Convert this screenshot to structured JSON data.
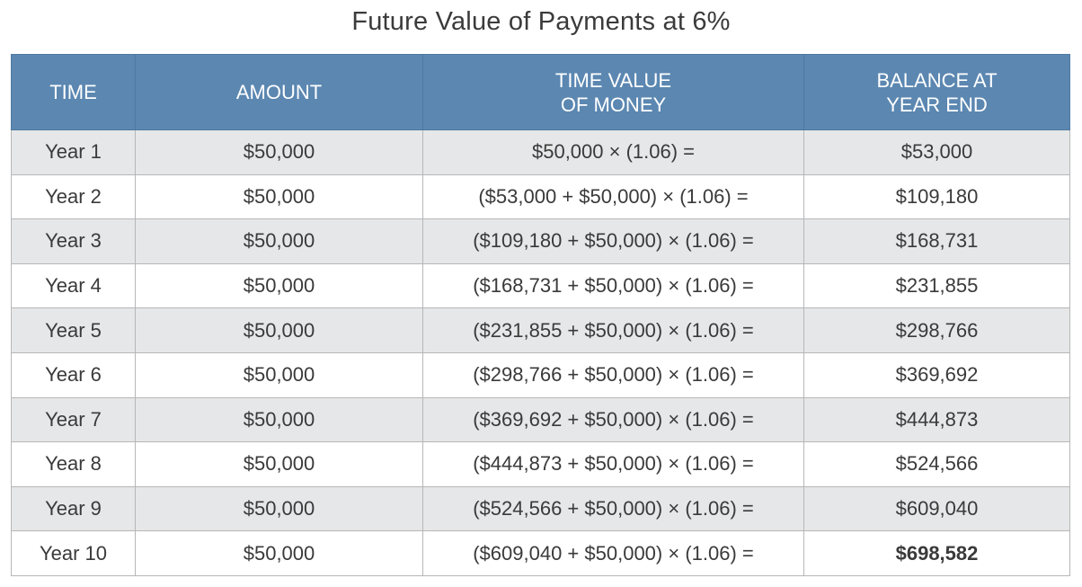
{
  "title": "Future Value of Payments at 6%",
  "chart_data": {
    "type": "table",
    "title": "Future Value of Payments at 6%",
    "columns": [
      [
        "TIME"
      ],
      [
        "AMOUNT"
      ],
      [
        "TIME VALUE",
        "OF MONEY"
      ],
      [
        "BALANCE AT",
        "YEAR END"
      ]
    ],
    "rows": [
      {
        "time": "Year 1",
        "amount": "$50,000",
        "calc": "$50,000 × (1.06) =",
        "balance": "$53,000"
      },
      {
        "time": "Year 2",
        "amount": "$50,000",
        "calc": "($53,000 + $50,000) × (1.06) =",
        "balance": "$109,180"
      },
      {
        "time": "Year 3",
        "amount": "$50,000",
        "calc": "($109,180 + $50,000) × (1.06) =",
        "balance": "$168,731"
      },
      {
        "time": "Year 4",
        "amount": "$50,000",
        "calc": "($168,731 + $50,000) × (1.06) =",
        "balance": "$231,855"
      },
      {
        "time": "Year 5",
        "amount": "$50,000",
        "calc": "($231,855 + $50,000) × (1.06) =",
        "balance": "$298,766"
      },
      {
        "time": "Year 6",
        "amount": "$50,000",
        "calc": "($298,766 + $50,000) × (1.06) =",
        "balance": "$369,692"
      },
      {
        "time": "Year 7",
        "amount": "$50,000",
        "calc": "($369,692 + $50,000) × (1.06) =",
        "balance": "$444,873"
      },
      {
        "time": "Year 8",
        "amount": "$50,000",
        "calc": "($444,873 + $50,000) × (1.06) =",
        "balance": "$524,566"
      },
      {
        "time": "Year 9",
        "amount": "$50,000",
        "calc": "($524,566 + $50,000) × (1.06) =",
        "balance": "$609,040"
      },
      {
        "time": "Year 10",
        "amount": "$50,000",
        "calc": "($609,040 + $50,000) × (1.06) =",
        "balance": "$698,582",
        "balance_bold": true
      }
    ]
  },
  "colors": {
    "header_bg": "#5b87b1",
    "header_text": "#ffffff",
    "row_shaded": "#e6e7e8",
    "row_plain": "#ffffff",
    "grid": "#b7b7b7",
    "text": "#3a3a3a"
  }
}
